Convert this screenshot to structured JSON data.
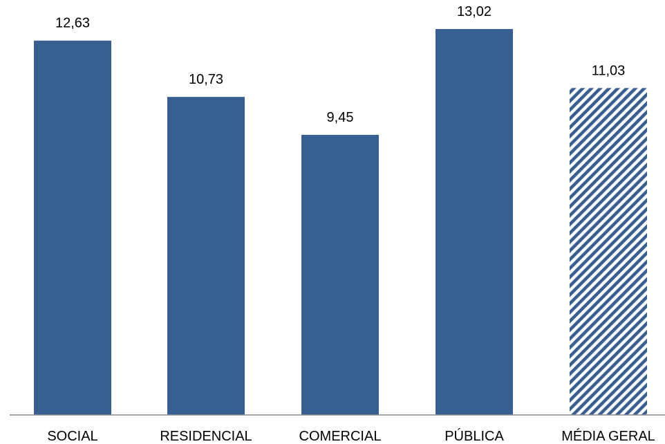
{
  "chart_data": {
    "type": "bar",
    "categories": [
      "SOCIAL",
      "RESIDENCIAL",
      "COMERCIAL",
      "PÚBLICA",
      "MÉDIA GERAL"
    ],
    "values": [
      12.63,
      10.73,
      9.45,
      13.02,
      11.03
    ],
    "data_labels": [
      "12,63",
      "10,73",
      "9,45",
      "13,02",
      "11,03"
    ],
    "ylim": [
      0,
      14
    ],
    "grid": false,
    "legend": "none",
    "bar_color": "#375F92",
    "highlight_pattern": "diagonal-hatch",
    "highlight_index": 4,
    "axis_color": "#8C8C8C"
  }
}
